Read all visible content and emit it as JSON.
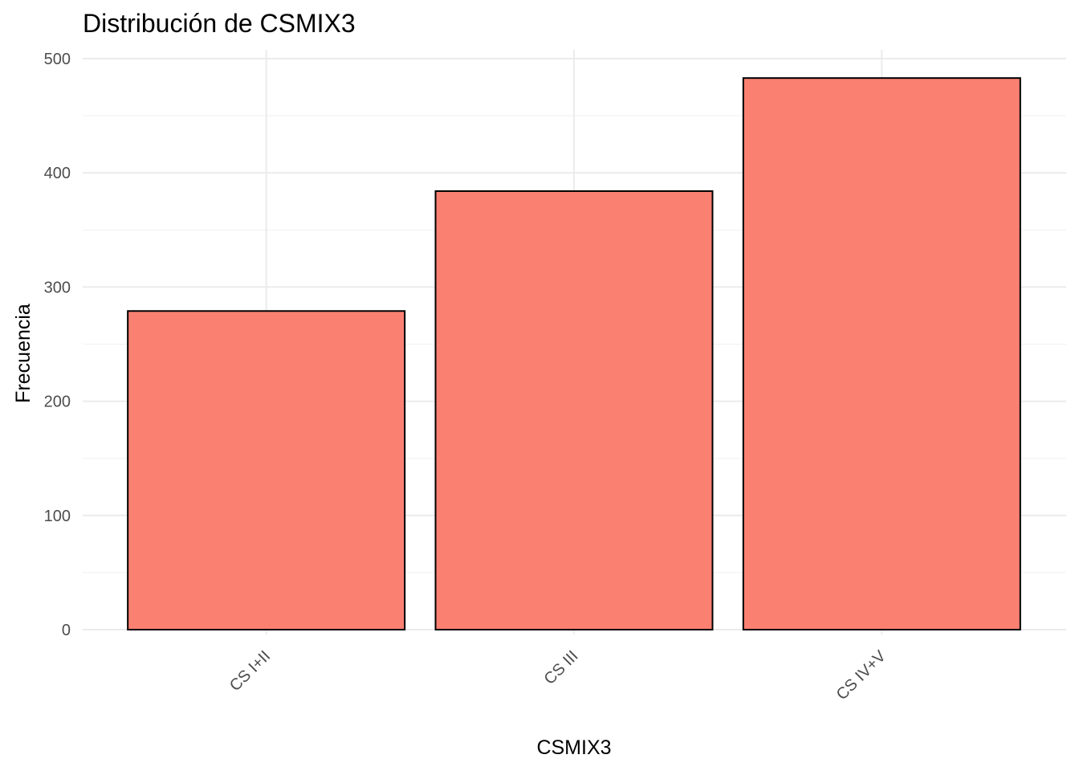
{
  "chart_data": {
    "type": "bar",
    "title": "Distribución de CSMIX3",
    "xlabel": "CSMIX3",
    "ylabel": "Frecuencia",
    "categories": [
      "CS I+II",
      "CS III",
      "CS IV+V"
    ],
    "values": [
      279,
      384,
      483
    ],
    "ylim": [
      0,
      500
    ],
    "yticks": [
      0,
      100,
      200,
      300,
      400,
      500
    ],
    "ytick_labels": [
      "0",
      "100",
      "200",
      "300",
      "400",
      "500"
    ],
    "bar_color": "#FA8072",
    "bar_outline": "#000000",
    "grid": true,
    "legend": "none"
  }
}
